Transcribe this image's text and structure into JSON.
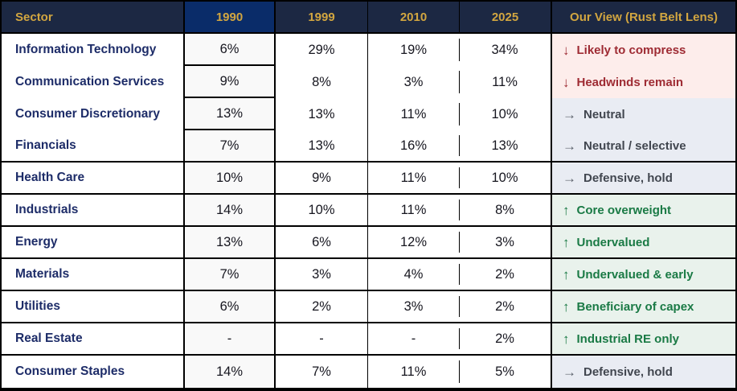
{
  "colors": {
    "border": "#000000",
    "header_bg": "#1c2843",
    "header_1990_bg": "#0a2c69",
    "header_text": "#d2a640",
    "sector_text": "#1d2c68",
    "value_text": "#16161f",
    "col1990_bg": "#f9f9f9",
    "negative_bg": "#fdedeb",
    "negative_text": "#9e2b33",
    "neutral_bg": "#e9ecf3",
    "neutral_text": "#41464f",
    "neutral_arrow": "#5a616b",
    "positive_bg": "#e9f2ec",
    "positive_text": "#1a7a45"
  },
  "table": {
    "columns": {
      "sector": "Sector",
      "y1990": "1990",
      "y1999": "1999",
      "y2010": "2010",
      "y2025": "2025",
      "view": "Our View (Rust Belt Lens)"
    },
    "rows": [
      {
        "sector": "Information Technology",
        "values": [
          "6%",
          "29%",
          "19%",
          "34%"
        ],
        "view": {
          "arrow": "↓",
          "label": "Likely to compress",
          "tone": "negative"
        }
      },
      {
        "sector": "Communication Services",
        "values": [
          "9%",
          "8%",
          "3%",
          "11%"
        ],
        "view": {
          "arrow": "↓",
          "label": "Headwinds remain",
          "tone": "negative"
        }
      },
      {
        "sector": "Consumer Discretionary",
        "values": [
          "13%",
          "13%",
          "11%",
          "10%"
        ],
        "view": {
          "arrow": "→",
          "label": "Neutral",
          "tone": "neutral"
        }
      },
      {
        "sector": "Financials",
        "values": [
          "7%",
          "13%",
          "16%",
          "13%"
        ],
        "view": {
          "arrow": "→",
          "label": "Neutral / selective",
          "tone": "neutral"
        }
      },
      {
        "sector": "Health Care",
        "values": [
          "10%",
          "9%",
          "11%",
          "10%"
        ],
        "view": {
          "arrow": "→",
          "label": "Defensive, hold",
          "tone": "neutral"
        }
      },
      {
        "sector": "Industrials",
        "values": [
          "14%",
          "10%",
          "11%",
          "8%"
        ],
        "view": {
          "arrow": "↑",
          "label": "Core overweight",
          "tone": "positive"
        }
      },
      {
        "sector": "Energy",
        "values": [
          "13%",
          "6%",
          "12%",
          "3%"
        ],
        "view": {
          "arrow": "↑",
          "label": "Undervalued",
          "tone": "positive"
        }
      },
      {
        "sector": "Materials",
        "values": [
          "7%",
          "3%",
          "4%",
          "2%"
        ],
        "view": {
          "arrow": "↑",
          "label": "Undervalued & early",
          "tone": "positive"
        }
      },
      {
        "sector": "Utilities",
        "values": [
          "6%",
          "2%",
          "3%",
          "2%"
        ],
        "view": {
          "arrow": "↑",
          "label": "Beneficiary of capex",
          "tone": "positive"
        }
      },
      {
        "sector": "Real Estate",
        "values": [
          "-",
          "-",
          "-",
          "2%"
        ],
        "view": {
          "arrow": "↑",
          "label": "Industrial RE only",
          "tone": "positive"
        }
      },
      {
        "sector": "Consumer Staples",
        "values": [
          "14%",
          "7%",
          "11%",
          "5%"
        ],
        "view": {
          "arrow": "→",
          "label": "Defensive, hold",
          "tone": "neutral"
        }
      }
    ]
  },
  "chart_data": {
    "type": "table",
    "title": "Sector weights by year with Our View (Rust Belt Lens)",
    "columns": [
      "Sector",
      "1990",
      "1999",
      "2010",
      "2025",
      "Our View (Rust Belt Lens)"
    ],
    "categories": [
      "Information Technology",
      "Communication Services",
      "Consumer Discretionary",
      "Financials",
      "Health Care",
      "Industrials",
      "Energy",
      "Materials",
      "Utilities",
      "Real Estate",
      "Consumer Staples"
    ],
    "series": [
      {
        "name": "1990",
        "values": [
          6,
          9,
          13,
          7,
          10,
          14,
          13,
          7,
          6,
          null,
          14
        ]
      },
      {
        "name": "1999",
        "values": [
          29,
          8,
          13,
          13,
          9,
          10,
          6,
          3,
          2,
          null,
          7
        ]
      },
      {
        "name": "2010",
        "values": [
          19,
          3,
          11,
          16,
          11,
          11,
          12,
          4,
          3,
          null,
          11
        ]
      },
      {
        "name": "2025",
        "values": [
          34,
          11,
          10,
          13,
          10,
          8,
          3,
          2,
          2,
          2,
          5
        ]
      }
    ],
    "views": [
      "Likely to compress",
      "Headwinds remain",
      "Neutral",
      "Neutral / selective",
      "Defensive, hold",
      "Core overweight",
      "Undervalued",
      "Undervalued & early",
      "Beneficiary of capex",
      "Industrial RE only",
      "Defensive, hold"
    ],
    "value_unit": "%"
  }
}
